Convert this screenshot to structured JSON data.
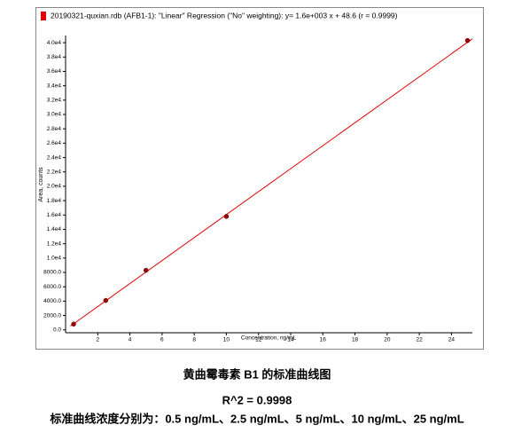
{
  "chart_data": {
    "type": "scatter",
    "legend_text": "20190321-quxian.rdb (AFB1-1): \"Linear\" Regression (\"No\" weighting): y= 1.6e+003 x + 48.6 (r = 0.9999)",
    "legend_color": "#e00000",
    "xlabel": "Concentration, ng/mL",
    "ylabel": "Area, counts",
    "x": [
      0.5,
      2.5,
      5,
      10,
      25
    ],
    "values": [
      800,
      4100,
      8300,
      15800,
      40300
    ],
    "color": "#a00000",
    "regression": {
      "slope": 1600,
      "intercept": 48.6,
      "color": "#e00000"
    },
    "xlim": [
      0,
      25.3
    ],
    "ylim": [
      -400,
      41000
    ],
    "xticks": [
      2,
      4,
      6,
      8,
      10,
      12,
      14,
      16,
      18,
      20,
      22,
      24
    ],
    "yticks": [
      {
        "value": 0,
        "label": "0.0"
      },
      {
        "value": 2000,
        "label": "2000.0"
      },
      {
        "value": 4000,
        "label": "4000.0"
      },
      {
        "value": 6000,
        "label": "6000.0"
      },
      {
        "value": 8000,
        "label": "8000.0"
      },
      {
        "value": 10000,
        "label": "1.0e4"
      },
      {
        "value": 12000,
        "label": "1.2e4"
      },
      {
        "value": 14000,
        "label": "1.4e4"
      },
      {
        "value": 16000,
        "label": "1.6e4"
      },
      {
        "value": 18000,
        "label": "1.8e4"
      },
      {
        "value": 20000,
        "label": "2.0e4"
      },
      {
        "value": 22000,
        "label": "2.2e4"
      },
      {
        "value": 24000,
        "label": "2.4e4"
      },
      {
        "value": 26000,
        "label": "2.6e4"
      },
      {
        "value": 28000,
        "label": "2.8e4"
      },
      {
        "value": 30000,
        "label": "3.0e4"
      },
      {
        "value": 32000,
        "label": "3.2e4"
      },
      {
        "value": 34000,
        "label": "3.4e4"
      },
      {
        "value": 36000,
        "label": "3.6e4"
      },
      {
        "value": 38000,
        "label": "3.8e4"
      },
      {
        "value": 40000,
        "label": "4.0e4"
      }
    ]
  },
  "captions": {
    "title": "黄曲霉毒素 B1 的标准曲线图",
    "r2": "R^2 = 0.9998",
    "concentrations": "标准曲线浓度分别为：0.5 ng/mL、2.5 ng/mL、5 ng/mL、10 ng/mL、25 ng/mL"
  }
}
